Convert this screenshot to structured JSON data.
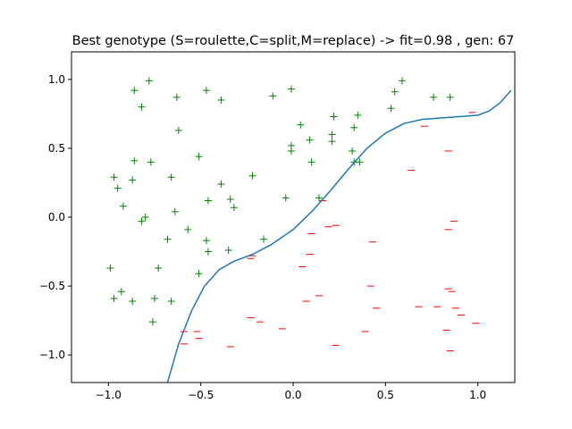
{
  "chart_data": {
    "type": "scatter",
    "title": "Best genotype (S=roulette,C=split,M=replace) -> fit=0.98 , gen: 67",
    "xlabel": "",
    "ylabel": "",
    "xlim": [
      -1.2,
      1.2
    ],
    "ylim": [
      -1.2,
      1.2
    ],
    "xticks": [
      -1.0,
      -0.5,
      0.0,
      0.5,
      1.0
    ],
    "xtick_labels": [
      "−1.0",
      "−0.5",
      "0.0",
      "0.5",
      "1.0"
    ],
    "yticks": [
      -1.0,
      -0.5,
      0.0,
      0.5,
      1.0
    ],
    "ytick_labels": [
      "−1.0",
      "−0.5",
      "0.0",
      "0.5",
      "1.0"
    ],
    "grid": false,
    "legend": "none",
    "series": [
      {
        "marker": "+",
        "color": "#008000",
        "points": [
          [
            -0.86,
            0.92
          ],
          [
            -0.78,
            0.99
          ],
          [
            -0.63,
            0.87
          ],
          [
            -0.47,
            0.92
          ],
          [
            -0.39,
            0.85
          ],
          [
            -0.11,
            0.88
          ],
          [
            -0.01,
            0.93
          ],
          [
            0.55,
            0.91
          ],
          [
            0.59,
            0.99
          ],
          [
            0.76,
            0.87
          ],
          [
            0.85,
            0.87
          ],
          [
            0.53,
            0.79
          ],
          [
            -0.82,
            0.8
          ],
          [
            0.35,
            0.74
          ],
          [
            0.22,
            0.73
          ],
          [
            0.04,
            0.67
          ],
          [
            0.33,
            0.65
          ],
          [
            -0.62,
            0.63
          ],
          [
            0.21,
            0.6
          ],
          [
            0.09,
            0.56
          ],
          [
            0.21,
            0.55
          ],
          [
            -0.01,
            0.52
          ],
          [
            -0.01,
            0.48
          ],
          [
            0.32,
            0.48
          ],
          [
            -0.51,
            0.44
          ],
          [
            -0.86,
            0.41
          ],
          [
            -0.77,
            0.4
          ],
          [
            0.1,
            0.4
          ],
          [
            0.33,
            0.4
          ],
          [
            0.36,
            0.4
          ],
          [
            -0.97,
            0.29
          ],
          [
            -0.87,
            0.27
          ],
          [
            -0.66,
            0.29
          ],
          [
            -0.22,
            0.3
          ],
          [
            -0.39,
            0.24
          ],
          [
            -0.95,
            0.21
          ],
          [
            -0.04,
            0.14
          ],
          [
            0.14,
            0.14
          ],
          [
            -0.46,
            0.12
          ],
          [
            -0.34,
            0.13
          ],
          [
            -0.92,
            0.08
          ],
          [
            -0.32,
            0.07
          ],
          [
            -0.64,
            0.04
          ],
          [
            -0.8,
            0.0
          ],
          [
            -0.82,
            -0.03
          ],
          [
            -0.57,
            -0.09
          ],
          [
            -0.68,
            -0.16
          ],
          [
            -0.16,
            -0.16
          ],
          [
            -0.47,
            -0.17
          ],
          [
            -0.46,
            -0.25
          ],
          [
            -0.35,
            -0.24
          ],
          [
            -0.99,
            -0.37
          ],
          [
            -0.73,
            -0.37
          ],
          [
            -0.51,
            -0.41
          ],
          [
            -0.93,
            -0.54
          ],
          [
            -0.97,
            -0.59
          ],
          [
            -0.75,
            -0.59
          ],
          [
            -0.87,
            -0.61
          ],
          [
            -0.66,
            -0.61
          ],
          [
            -0.76,
            -0.76
          ]
        ]
      },
      {
        "marker": "_",
        "color": "#ff0000",
        "points": [
          [
            0.97,
            0.76
          ],
          [
            0.71,
            0.66
          ],
          [
            0.84,
            0.48
          ],
          [
            0.64,
            0.34
          ],
          [
            0.16,
            0.12
          ],
          [
            0.87,
            -0.03
          ],
          [
            0.23,
            -0.06
          ],
          [
            0.19,
            -0.07
          ],
          [
            0.84,
            -0.09
          ],
          [
            0.1,
            -0.12
          ],
          [
            0.43,
            -0.18
          ],
          [
            0.09,
            -0.27
          ],
          [
            -0.22,
            -0.28
          ],
          [
            -0.23,
            -0.3
          ],
          [
            0.05,
            -0.36
          ],
          [
            0.42,
            -0.5
          ],
          [
            0.84,
            -0.52
          ],
          [
            0.86,
            -0.54
          ],
          [
            0.14,
            -0.57
          ],
          [
            0.07,
            -0.61
          ],
          [
            0.78,
            -0.65
          ],
          [
            0.68,
            -0.65
          ],
          [
            0.45,
            -0.66
          ],
          [
            0.88,
            -0.66
          ],
          [
            0.91,
            -0.71
          ],
          [
            -0.23,
            -0.73
          ],
          [
            -0.18,
            -0.76
          ],
          [
            0.99,
            -0.77
          ],
          [
            -0.06,
            -0.81
          ],
          [
            0.83,
            -0.82
          ],
          [
            -0.59,
            -0.83
          ],
          [
            -0.52,
            -0.83
          ],
          [
            0.39,
            -0.83
          ],
          [
            -0.51,
            -0.88
          ],
          [
            -0.59,
            -0.92
          ],
          [
            0.23,
            -0.93
          ],
          [
            -0.34,
            -0.94
          ],
          [
            0.85,
            -0.97
          ]
        ]
      },
      {
        "type": "line",
        "color": "#1f77b4",
        "points": [
          [
            -0.68,
            -1.2
          ],
          [
            -0.62,
            -0.92
          ],
          [
            -0.55,
            -0.68
          ],
          [
            -0.48,
            -0.5
          ],
          [
            -0.4,
            -0.38
          ],
          [
            -0.32,
            -0.32
          ],
          [
            -0.22,
            -0.27
          ],
          [
            -0.12,
            -0.2
          ],
          [
            0.0,
            -0.09
          ],
          [
            0.1,
            0.04
          ],
          [
            0.2,
            0.19
          ],
          [
            0.3,
            0.35
          ],
          [
            0.4,
            0.5
          ],
          [
            0.5,
            0.61
          ],
          [
            0.6,
            0.68
          ],
          [
            0.7,
            0.71
          ],
          [
            0.8,
            0.72
          ],
          [
            0.9,
            0.73
          ],
          [
            1.0,
            0.74
          ],
          [
            1.06,
            0.77
          ],
          [
            1.12,
            0.83
          ],
          [
            1.18,
            0.92
          ]
        ]
      }
    ]
  }
}
